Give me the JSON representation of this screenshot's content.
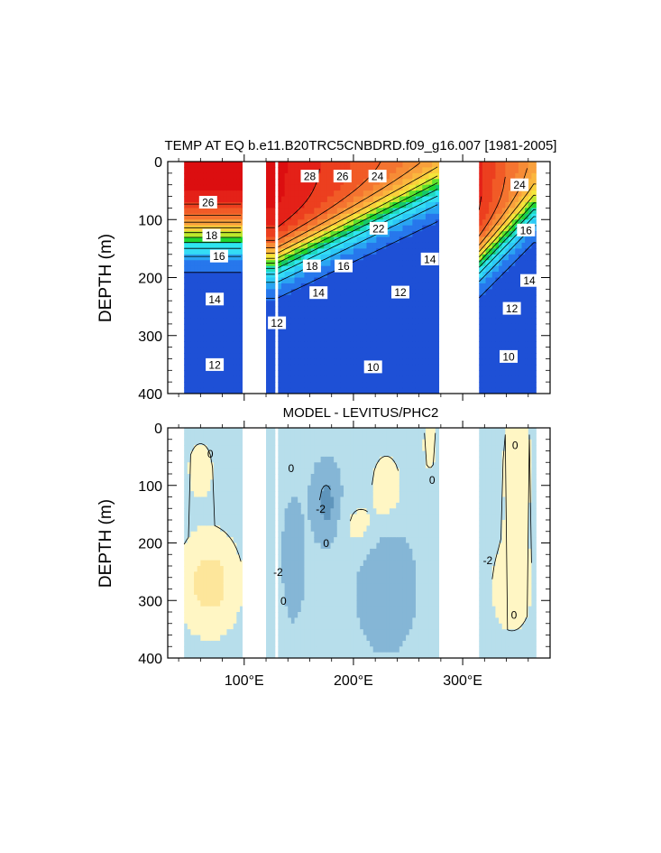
{
  "figure": {
    "colors": {
      "background": "#ffffff",
      "axis": "#000000",
      "contour_line": "#000000",
      "missing": "#ffffff"
    }
  },
  "chart_data": [
    {
      "type": "heatmap",
      "title": "TEMP AT EQ b.e11.B20TRC5CNBDRD.f09_g16.007 [1981-2005]",
      "ylabel": "DEPTH (m)",
      "xlabel": "",
      "xlim": [
        30,
        380
      ],
      "ylim": [
        400,
        0
      ],
      "y_reversed": true,
      "y_ticks": [
        0,
        100,
        200,
        300,
        400
      ],
      "y_tick_labels": [
        "0",
        "100",
        "200",
        "300",
        "400"
      ],
      "x_ticks": [
        100,
        200,
        300
      ],
      "x_tick_labels": [],
      "ocean_segments_lon": [
        [
          45,
          98
        ],
        [
          120,
          128
        ],
        [
          131,
          278
        ],
        [
          315,
          367
        ]
      ],
      "grid": false,
      "contour_labels": [
        {
          "text": "26",
          "lon": 67,
          "depth": 70
        },
        {
          "text": "18",
          "lon": 70,
          "depth": 127
        },
        {
          "text": "16",
          "lon": 77,
          "depth": 163
        },
        {
          "text": "14",
          "lon": 73,
          "depth": 237
        },
        {
          "text": "12",
          "lon": 73,
          "depth": 350
        },
        {
          "text": "28",
          "lon": 160,
          "depth": 25
        },
        {
          "text": "26",
          "lon": 190,
          "depth": 25
        },
        {
          "text": "24",
          "lon": 222,
          "depth": 25
        },
        {
          "text": "22",
          "lon": 223,
          "depth": 115
        },
        {
          "text": "18",
          "lon": 162,
          "depth": 180
        },
        {
          "text": "16",
          "lon": 191,
          "depth": 180
        },
        {
          "text": "14",
          "lon": 168,
          "depth": 226
        },
        {
          "text": "12",
          "lon": 130,
          "depth": 278
        },
        {
          "text": "12",
          "lon": 243,
          "depth": 225
        },
        {
          "text": "14",
          "lon": 270,
          "depth": 168
        },
        {
          "text": "10",
          "lon": 218,
          "depth": 354
        },
        {
          "text": "24",
          "lon": 352,
          "depth": 40
        },
        {
          "text": "16",
          "lon": 358,
          "depth": 118
        },
        {
          "text": "14",
          "lon": 361,
          "depth": 205
        },
        {
          "text": "12",
          "lon": 345,
          "depth": 253
        },
        {
          "text": "10",
          "lon": 342,
          "depth": 336
        }
      ],
      "notes": "Temperature (degC) contour plot, range roughly 9-30, colored red (warm, near surface) to blue (cold, deep); thermocline shoals from west to east."
    },
    {
      "type": "heatmap",
      "title": "MODEL - LEVITUS/PHC2",
      "ylabel": "DEPTH (m)",
      "xlabel": "",
      "xlim": [
        30,
        380
      ],
      "ylim": [
        400,
        0
      ],
      "y_reversed": true,
      "y_ticks": [
        0,
        100,
        200,
        300,
        400
      ],
      "y_tick_labels": [
        "0",
        "100",
        "200",
        "300",
        "400"
      ],
      "x_ticks": [
        100,
        200,
        300
      ],
      "x_tick_labels": [
        "100°E",
        "200°E",
        "300°E"
      ],
      "ocean_segments_lon": [
        [
          45,
          98
        ],
        [
          120,
          128
        ],
        [
          131,
          278
        ],
        [
          315,
          367
        ]
      ],
      "grid": false,
      "contour_labels": [
        {
          "text": "0",
          "lon": 69,
          "depth": 45
        },
        {
          "text": "0",
          "lon": 143,
          "depth": 70
        },
        {
          "text": "-2",
          "lon": 170,
          "depth": 140
        },
        {
          "text": "0",
          "lon": 175,
          "depth": 200
        },
        {
          "text": "-2",
          "lon": 131,
          "depth": 250
        },
        {
          "text": "0",
          "lon": 136,
          "depth": 300
        },
        {
          "text": "0",
          "lon": 272,
          "depth": 90
        },
        {
          "text": "0",
          "lon": 348,
          "depth": 30
        },
        {
          "text": "-2",
          "lon": 323,
          "depth": 230
        },
        {
          "text": "0",
          "lon": 347,
          "depth": 325
        }
      ],
      "notes": "Temperature difference (degC), light blue negative, yellow positive."
    }
  ]
}
